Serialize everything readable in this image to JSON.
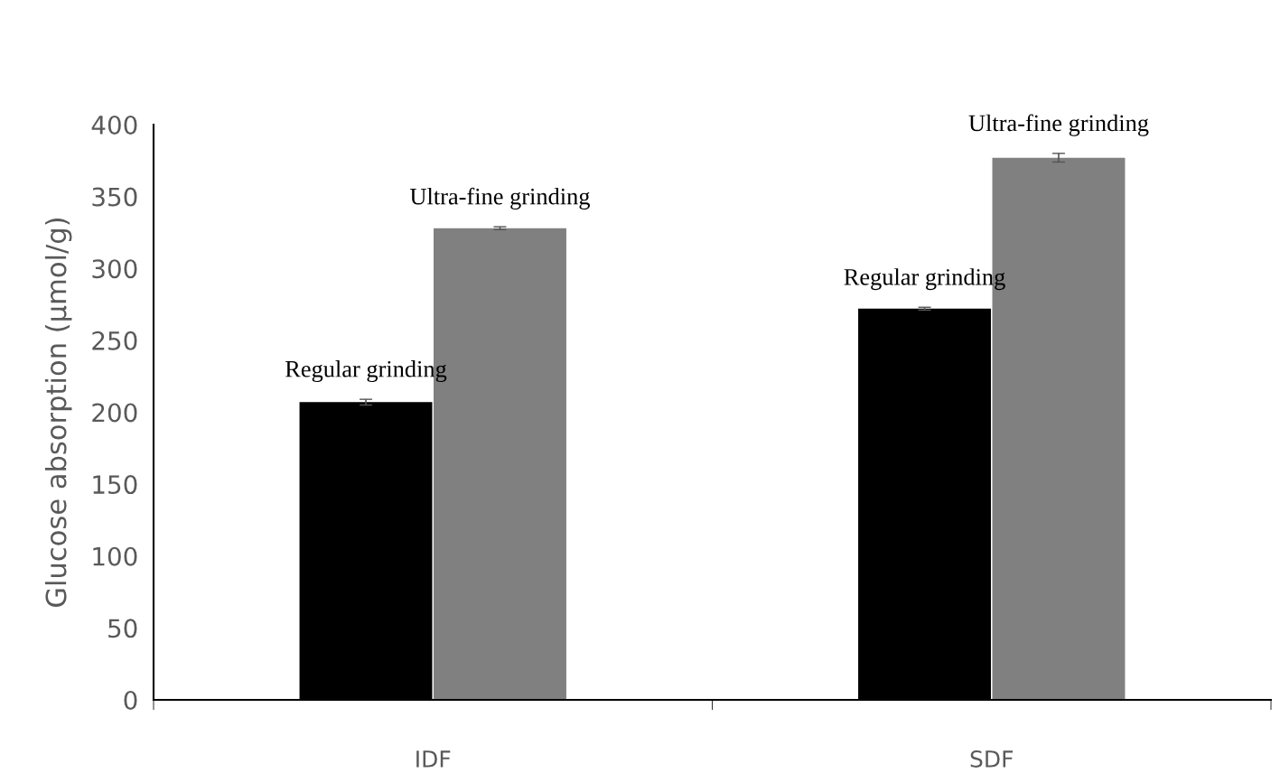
{
  "chart_data": {
    "type": "bar",
    "ylabel": "Glucose absorption (μmol/g)",
    "categories": [
      "IDF",
      "SDF"
    ],
    "series": [
      {
        "name": "Regular grinding",
        "color": "#000000",
        "values": [
          207,
          272
        ],
        "errors": [
          2,
          1
        ]
      },
      {
        "name": "Ultra-fine grinding",
        "color": "#808080",
        "values": [
          328,
          377
        ],
        "errors": [
          1,
          3
        ]
      }
    ],
    "ylim": [
      0,
      400
    ],
    "yticks": [
      0,
      50,
      100,
      150,
      200,
      250,
      300,
      350,
      400
    ],
    "grid": false,
    "legend": false
  }
}
